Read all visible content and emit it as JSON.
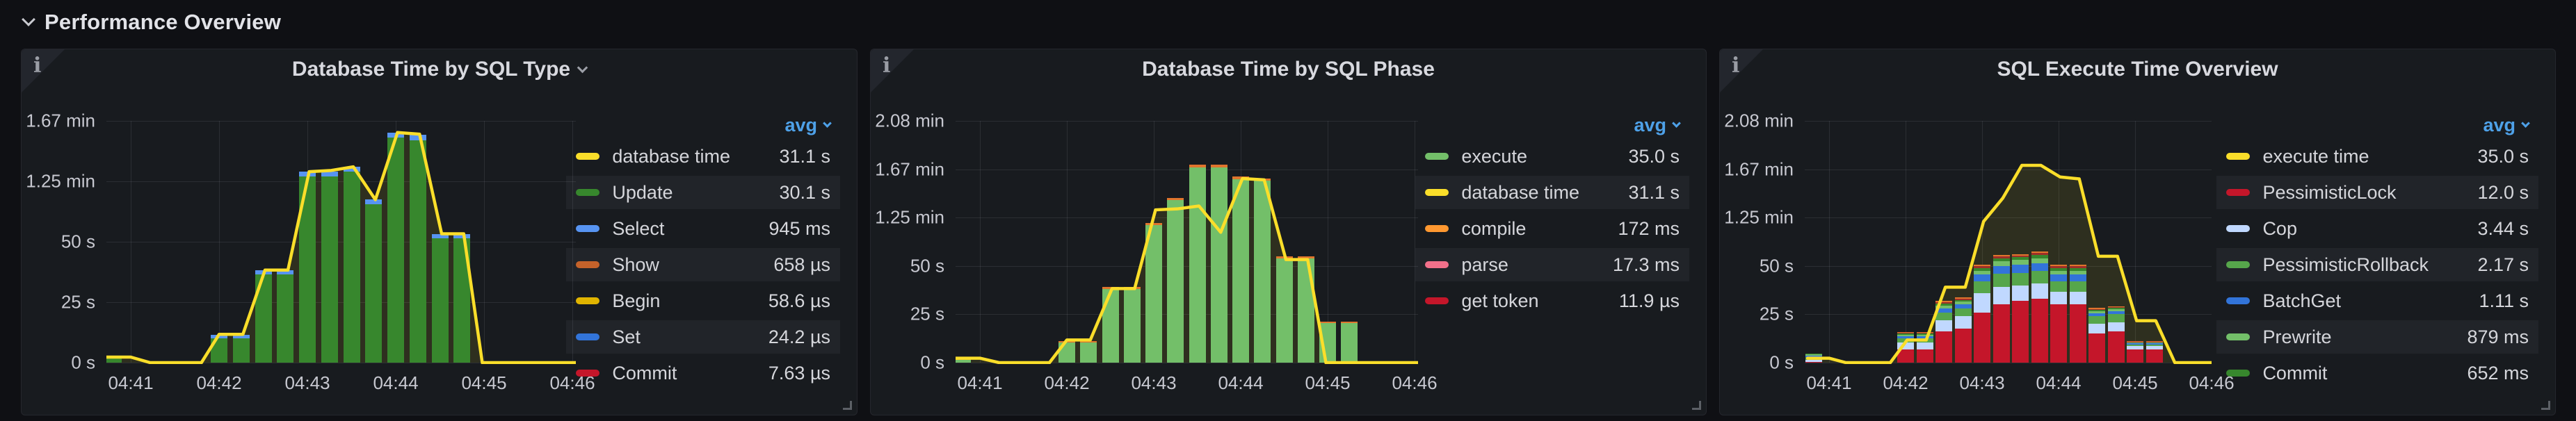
{
  "header": {
    "title": "Performance Overview",
    "collapse_icon": "chevron-down"
  },
  "colors": {
    "page_bg": "#0F1014",
    "panel_bg": "#181B1F",
    "grid": "rgba(204,204,220,0.11)",
    "accent_yellow": "#FADE2A",
    "legend_sort_blue": "#4EA1E8",
    "yellow_area_fill": "rgba(250,222,42,0.10)"
  },
  "panels": [
    {
      "title": "Database Time by SQL Type",
      "has_title_dropdown": true,
      "legend": {
        "sort": "avg",
        "rows": [
          {
            "label": "database time",
            "value": "31.1 s",
            "color": "#FADE2A"
          },
          {
            "label": "Update",
            "value": "30.1 s",
            "color": "#37872D"
          },
          {
            "label": "Select",
            "value": "945 ms",
            "color": "#5794F2"
          },
          {
            "label": "Show",
            "value": "658 µs",
            "color": "#C4622A"
          },
          {
            "label": "Begin",
            "value": "58.6 µs",
            "color": "#E0B400"
          },
          {
            "label": "Set",
            "value": "24.2 µs",
            "color": "#3274D9"
          },
          {
            "label": "Commit",
            "value": "7.63 µs",
            "color": "#C4162A"
          }
        ]
      },
      "chart_data": {
        "type": "bar+line",
        "title": "Database Time by SQL Type",
        "x_ticks": [
          "04:41",
          "04:42",
          "04:43",
          "04:44",
          "04:45",
          "04:46"
        ],
        "y_ticks": [
          {
            "label": "0 s",
            "value": 0
          },
          {
            "label": "25 s",
            "value": 25
          },
          {
            "label": "50 s",
            "value": 50
          },
          {
            "label": "1.25 min",
            "value": 75
          },
          {
            "label": "1.67 min",
            "value": 100
          }
        ],
        "x_unit": "minutes after 04:41, stacked bars every 15 s, values in seconds",
        "bars_x": [
          -0.2,
          1,
          1.25,
          1.5,
          1.75,
          2,
          2.25,
          2.5,
          2.75,
          3,
          3.25,
          3.5,
          3.75
        ],
        "series": [
          {
            "name": "Update",
            "color": "#37872D",
            "values": [
              1.6,
              10,
              10,
              36.5,
              36.5,
              77,
              77,
              79,
              65.5,
              93,
              92,
              51.5,
              51.5
            ]
          },
          {
            "name": "Select",
            "color": "#5794F2",
            "values": [
              0.8,
              1.5,
              1.5,
              1.8,
              1.8,
              2,
              2,
              2,
              1.9,
              2.2,
              2.2,
              1.8,
              1.8
            ]
          }
        ],
        "line": {
          "name": "database time",
          "color": "#FADE2A",
          "points": [
            [
              -0.28,
              2.3
            ],
            [
              0,
              2.3
            ],
            [
              0.22,
              0
            ],
            [
              0.8,
              0
            ],
            [
              1,
              11.7
            ],
            [
              1.27,
              11.7
            ],
            [
              1.52,
              38.3
            ],
            [
              1.78,
              38.3
            ],
            [
              2.02,
              79
            ],
            [
              2.27,
              79.5
            ],
            [
              2.52,
              81
            ],
            [
              2.77,
              67.4
            ],
            [
              3.02,
              95.2
            ],
            [
              3.27,
              94.5
            ],
            [
              3.52,
              53.3
            ],
            [
              3.77,
              53.3
            ],
            [
              3.98,
              0
            ],
            [
              5.1,
              0
            ]
          ]
        }
      }
    },
    {
      "title": "Database Time by SQL Phase",
      "has_title_dropdown": false,
      "legend": {
        "sort": "avg",
        "rows": [
          {
            "label": "execute",
            "value": "35.0 s",
            "color": "#73BF69"
          },
          {
            "label": "database time",
            "value": "31.1 s",
            "color": "#FADE2A"
          },
          {
            "label": "compile",
            "value": "172 ms",
            "color": "#FF9830"
          },
          {
            "label": "parse",
            "value": "17.3 ms",
            "color": "#F2708A"
          },
          {
            "label": "get token",
            "value": "11.9 µs",
            "color": "#C4162A"
          }
        ]
      },
      "chart_data": {
        "type": "bar+line",
        "title": "Database Time by SQL Phase",
        "x_ticks": [
          "04:41",
          "04:42",
          "04:43",
          "04:44",
          "04:45",
          "04:46"
        ],
        "y_ticks": [
          {
            "label": "0 s",
            "value": 0
          },
          {
            "label": "25 s",
            "value": 25
          },
          {
            "label": "50 s",
            "value": 50
          },
          {
            "label": "1.25 min",
            "value": 75
          },
          {
            "label": "1.67 min",
            "value": 100
          },
          {
            "label": "2.08 min",
            "value": 125
          }
        ],
        "x_unit": "minutes after 04:41, stacked bars every 15 s, values in seconds",
        "bars_x": [
          -0.2,
          1,
          1.25,
          1.5,
          1.75,
          2,
          2.25,
          2.5,
          2.75,
          3,
          3.25,
          3.5,
          3.75,
          4,
          4.25
        ],
        "series": [
          {
            "name": "execute",
            "color": "#73BF69",
            "values": [
              1.3,
              10.5,
              10.5,
              38,
              38,
              71,
              84,
              101,
              101,
              95,
              94,
              54,
              54,
              20.5,
              20.5
            ]
          },
          {
            "name": "compile",
            "color": "#E0752D",
            "values": [
              0.4,
              0.8,
              0.8,
              1,
              1,
              1.2,
              1.3,
              1.4,
              1.4,
              1.3,
              1.3,
              1,
              1,
              0.6,
              0.6
            ]
          }
        ],
        "line": {
          "name": "database time",
          "color": "#FADE2A",
          "points": [
            [
              -0.28,
              2.3
            ],
            [
              0,
              2.3
            ],
            [
              0.22,
              0
            ],
            [
              0.8,
              0
            ],
            [
              1,
              11.7
            ],
            [
              1.27,
              11.7
            ],
            [
              1.52,
              38.3
            ],
            [
              1.78,
              38.3
            ],
            [
              2.02,
              79
            ],
            [
              2.27,
              79.5
            ],
            [
              2.52,
              81
            ],
            [
              2.77,
              67.4
            ],
            [
              3.02,
              95.2
            ],
            [
              3.27,
              94.5
            ],
            [
              3.52,
              53.3
            ],
            [
              3.77,
              53.3
            ],
            [
              3.98,
              0
            ],
            [
              5.1,
              0
            ]
          ]
        }
      }
    },
    {
      "title": "SQL Execute Time Overview",
      "has_title_dropdown": false,
      "legend": {
        "sort": "avg",
        "rows": [
          {
            "label": "execute time",
            "value": "35.0 s",
            "color": "#FADE2A"
          },
          {
            "label": "PessimisticLock",
            "value": "12.0 s",
            "color": "#C4162A"
          },
          {
            "label": "Cop",
            "value": "3.44 s",
            "color": "#C0D8FF"
          },
          {
            "label": "PessimisticRollback",
            "value": "2.17 s",
            "color": "#56A64B"
          },
          {
            "label": "BatchGet",
            "value": "1.11 s",
            "color": "#3274D9"
          },
          {
            "label": "Prewrite",
            "value": "879 ms",
            "color": "#73BF69"
          },
          {
            "label": "Commit",
            "value": "652 ms",
            "color": "#37872D"
          }
        ]
      },
      "chart_data": {
        "type": "bar+line",
        "title": "SQL Execute Time Overview",
        "x_ticks": [
          "04:41",
          "04:42",
          "04:43",
          "04:44",
          "04:45",
          "04:46"
        ],
        "y_ticks": [
          {
            "label": "0 s",
            "value": 0
          },
          {
            "label": "25 s",
            "value": 25
          },
          {
            "label": "50 s",
            "value": 50
          },
          {
            "label": "1.25 min",
            "value": 75
          },
          {
            "label": "1.67 min",
            "value": 100
          },
          {
            "label": "2.08 min",
            "value": 125
          }
        ],
        "x_unit": "minutes after 04:41, stacked bars every 15 s, values in seconds",
        "bars_x": [
          -0.2,
          1,
          1.25,
          1.5,
          1.75,
          2,
          2.25,
          2.5,
          2.75,
          3,
          3.25,
          3.5,
          3.75,
          4,
          4.25
        ],
        "series": [
          {
            "name": "PessimisticLock",
            "color": "#C4162A",
            "values": [
              0.3,
              7,
              7,
              16,
              17.5,
              26,
              30,
              32,
              33,
              30,
              30,
              15,
              16,
              7,
              7
            ]
          },
          {
            "name": "Cop",
            "color": "#C0D8FF",
            "values": [
              1.2,
              3.5,
              3.5,
              6,
              6.5,
              10,
              9,
              8,
              8,
              6.5,
              6.5,
              5,
              5,
              1.5,
              1.5
            ]
          },
          {
            "name": "PessimisticRollback",
            "color": "#56A64B",
            "values": [
              1.4,
              2,
              2,
              4,
              4,
              6,
              7,
              6.5,
              6.5,
              5.5,
              5.5,
              4,
              4,
              1,
              1
            ]
          },
          {
            "name": "BatchGet",
            "color": "#3274D9",
            "values": [
              0.8,
              1.2,
              1.2,
              2,
              2,
              3.5,
              4,
              4,
              4,
              3.5,
              3.5,
              1.5,
              1.5,
              0.5,
              0.5
            ]
          },
          {
            "name": "Prewrite",
            "color": "#73BF69",
            "values": [
              0.5,
              0.8,
              0.8,
              1.5,
              1.5,
              2,
              2.5,
              2.5,
              2.5,
              2,
              2,
              1,
              1,
              0.4,
              0.4
            ]
          },
          {
            "name": "Commit",
            "color": "#37872D",
            "values": [
              0.5,
              0.5,
              0.5,
              1,
              1,
              1.5,
              1.5,
              1.5,
              1.8,
              1.5,
              1.5,
              0.8,
              0.8,
              0.3,
              0.3
            ]
          },
          {
            "name": "top-cap-dark-red",
            "color": "#9E2F28",
            "values": [
              0,
              0.5,
              0.5,
              0.7,
              0.7,
              0.8,
              0.8,
              0.8,
              0.8,
              0.8,
              0.8,
              0.5,
              0.5,
              0.2,
              0.2
            ]
          },
          {
            "name": "top-cap-orange",
            "color": "#E0752D",
            "values": [
              0,
              0.4,
              0.4,
              0.6,
              0.6,
              0.7,
              0.7,
              0.7,
              0.7,
              0.7,
              0.7,
              0.4,
              0.4,
              0.2,
              0.2
            ]
          }
        ],
        "line": {
          "name": "execute time",
          "color": "#FADE2A",
          "points": [
            [
              -0.28,
              2.3
            ],
            [
              0,
              2.3
            ],
            [
              0.22,
              0
            ],
            [
              0.8,
              0
            ],
            [
              1.02,
              11.7
            ],
            [
              1.27,
              11.7
            ],
            [
              1.52,
              39
            ],
            [
              1.78,
              39
            ],
            [
              2.02,
              73
            ],
            [
              2.27,
              85
            ],
            [
              2.52,
              102
            ],
            [
              2.77,
              102
            ],
            [
              3.02,
              96
            ],
            [
              3.27,
              95
            ],
            [
              3.52,
              55
            ],
            [
              3.77,
              55
            ],
            [
              4.02,
              21.7
            ],
            [
              4.27,
              21.7
            ],
            [
              4.52,
              0
            ],
            [
              5.1,
              0
            ]
          ]
        }
      }
    }
  ]
}
